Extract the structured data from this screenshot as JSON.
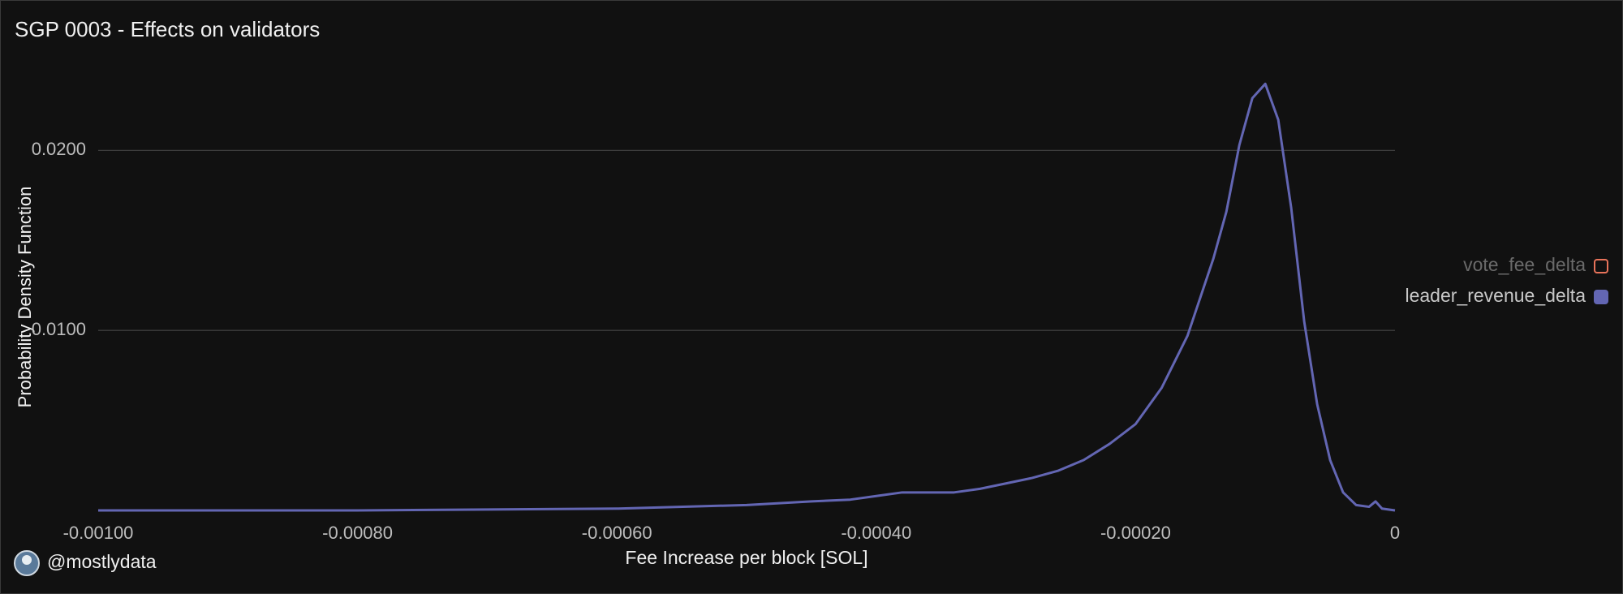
{
  "chart_data": {
    "type": "line",
    "title": "SGP 0003 - Effects on validators",
    "x_label": "Fee Increase per block [SOL]",
    "y_label": "Probability Density Function",
    "watermark": "@mostlydata",
    "x": [
      -0.001,
      -0.0009,
      -0.0008,
      -0.0007,
      -0.0006,
      -0.0005,
      -0.00045,
      -0.00042,
      -0.0004,
      -0.00038,
      -0.00036,
      -0.00034,
      -0.00032,
      -0.0003,
      -0.00028,
      -0.00026,
      -0.00024,
      -0.00022,
      -0.0002,
      -0.00018,
      -0.00016,
      -0.00014,
      -0.00013,
      -0.00012,
      -0.00011,
      -0.0001,
      -9e-05,
      -8e-05,
      -7e-05,
      -6e-05,
      -5e-05,
      -4e-05,
      -3e-05,
      -2e-05,
      -1.5e-05,
      -1e-05,
      0
    ],
    "series": [
      {
        "name": "vote_fee_delta",
        "color": "#e8735a",
        "visible": false,
        "values": [
          null,
          null,
          null,
          null,
          null,
          null,
          null,
          null,
          null,
          null,
          null,
          null,
          null,
          null,
          null,
          null,
          null,
          null,
          null,
          null,
          null,
          null,
          null,
          null,
          null,
          null,
          null,
          null,
          null,
          null,
          null,
          null,
          null,
          null,
          null,
          null,
          null
        ]
      },
      {
        "name": "leader_revenue_delta",
        "color": "#6366b3",
        "visible": true,
        "values": [
          0,
          0,
          0,
          5e-05,
          0.0001,
          0.0003,
          0.0005,
          0.0006,
          0.0008,
          0.001,
          0.001,
          0.001,
          0.0012,
          0.0015,
          0.0018,
          0.0022,
          0.0028,
          0.0037,
          0.0048,
          0.0068,
          0.0097,
          0.014,
          0.0166,
          0.0203,
          0.0229,
          0.0237,
          0.0217,
          0.0168,
          0.0105,
          0.0059,
          0.0028,
          0.001,
          0.0003,
          0.0002,
          0.0005,
          0.0001,
          0
        ]
      }
    ],
    "xlim": [
      -0.001,
      0
    ],
    "ylim": [
      0,
      0.0243
    ],
    "xticks": [
      {
        "value": -0.001,
        "label": "-0.00100"
      },
      {
        "value": -0.0008,
        "label": "-0.00080"
      },
      {
        "value": -0.0006,
        "label": "-0.00060"
      },
      {
        "value": -0.0004,
        "label": "-0.00040"
      },
      {
        "value": -0.0002,
        "label": "-0.00020"
      },
      0
    ],
    "yticks": [
      {
        "value": 0.01,
        "label": "0.0100"
      },
      {
        "value": 0.02,
        "label": "0.0200"
      }
    ],
    "grid": true,
    "legend": "right"
  }
}
